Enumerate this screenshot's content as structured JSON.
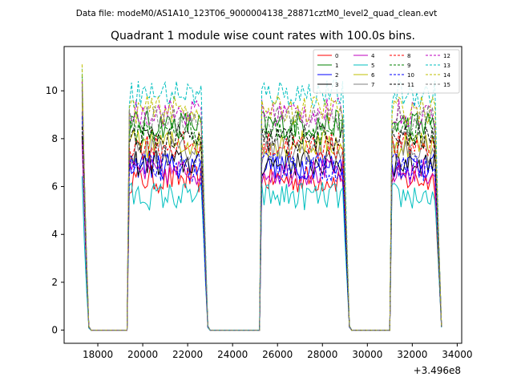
{
  "chart_data": {
    "type": "line",
    "suptitle": "Data file: modeM0/AS1A10_123T06_9000004138_28871cztM0_level2_quad_clean.evt",
    "title": "Quadrant 1 module wise count rates with 100.0s bins.",
    "xlabel": "",
    "ylabel": "",
    "x_offset_label": "+3.496e8",
    "xlim": [
      16500,
      34200
    ],
    "ylim": [
      -0.55,
      11.85
    ],
    "x_ticks": [
      18000,
      20000,
      22000,
      24000,
      26000,
      28000,
      30000,
      32000,
      34000
    ],
    "y_ticks": [
      0,
      2,
      4,
      6,
      8,
      10
    ],
    "legend_location": "top-right",
    "bin_seconds": 100,
    "on_intervals": [
      [
        17300,
        17600
      ],
      [
        19400,
        22900
      ],
      [
        25300,
        29200
      ],
      [
        31100,
        33300
      ]
    ],
    "series": [
      {
        "name": "0",
        "color": "#ff0000",
        "dash": "solid",
        "level": 6.3,
        "start": 8.6
      },
      {
        "name": "1",
        "color": "#008000",
        "dash": "solid",
        "level": 8.6,
        "start": 10.1
      },
      {
        "name": "2",
        "color": "#0000ff",
        "dash": "solid",
        "level": 6.9,
        "start": 9.1
      },
      {
        "name": "3",
        "color": "#000000",
        "dash": "solid",
        "level": 7.0,
        "start": 7.8
      },
      {
        "name": "4",
        "color": "#bf00bf",
        "dash": "solid",
        "level": 6.6,
        "start": 8.2
      },
      {
        "name": "5",
        "color": "#00bfbf",
        "dash": "solid",
        "level": 5.6,
        "start": 6.4
      },
      {
        "name": "6",
        "color": "#bfbf00",
        "dash": "solid",
        "level": 7.8,
        "start": 9.4
      },
      {
        "name": "7",
        "color": "#808080",
        "dash": "solid",
        "level": 7.5,
        "start": 8.8
      },
      {
        "name": "8",
        "color": "#ff0000",
        "dash": "dashed",
        "level": 7.7,
        "start": 9.9
      },
      {
        "name": "9",
        "color": "#008000",
        "dash": "dashed",
        "level": 8.3,
        "start": 10.3
      },
      {
        "name": "10",
        "color": "#0000ff",
        "dash": "dashed",
        "level": 6.8,
        "start": 9.3
      },
      {
        "name": "11",
        "color": "#000000",
        "dash": "dashed",
        "level": 8.0,
        "start": 9.0
      },
      {
        "name": "12",
        "color": "#bf00bf",
        "dash": "dashed",
        "level": 9.1,
        "start": 10.0
      },
      {
        "name": "13",
        "color": "#00bfbf",
        "dash": "dashed",
        "level": 9.9,
        "start": 10.8
      },
      {
        "name": "14",
        "color": "#bfbf00",
        "dash": "dashed",
        "level": 9.2,
        "start": 10.6
      },
      {
        "name": "15",
        "color": "#808080",
        "dash": "dashed",
        "level": 8.8,
        "start": 10.2
      }
    ]
  }
}
